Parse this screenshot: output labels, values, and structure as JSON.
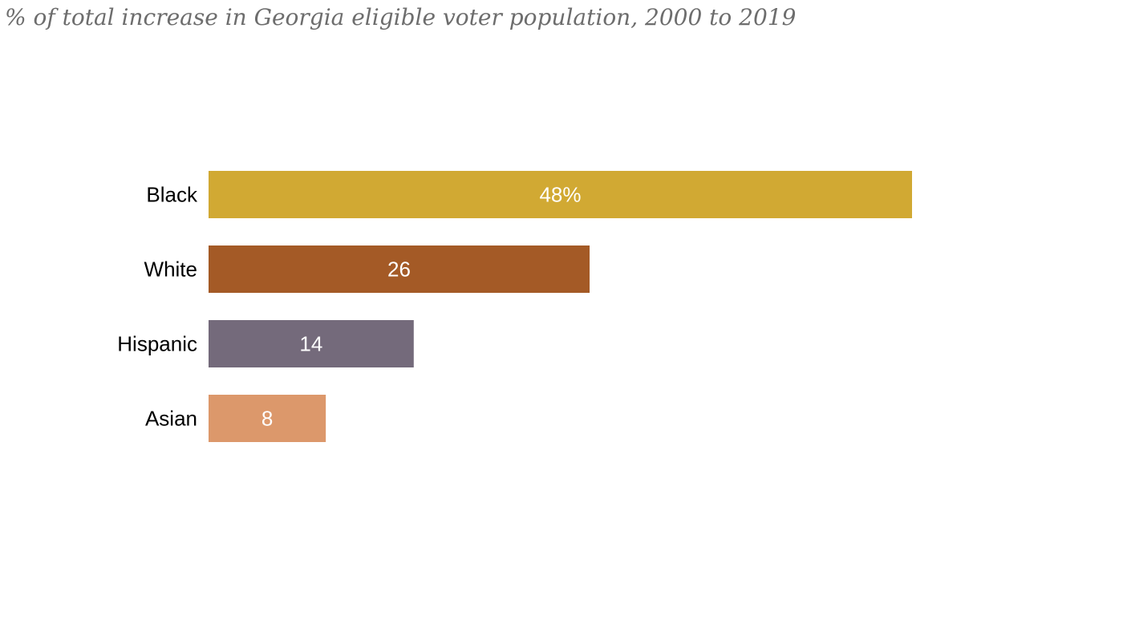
{
  "chart_data": {
    "type": "bar",
    "orientation": "horizontal",
    "title": "% of total increase in Georgia eligible voter population, 2000 to 2019",
    "categories": [
      "Black",
      "White",
      "Hispanic",
      "Asian"
    ],
    "values": [
      48,
      26,
      14,
      8
    ],
    "value_labels": [
      "48%",
      "26",
      "14",
      "8"
    ],
    "colors": [
      "#d1a933",
      "#a45a26",
      "#746a7b",
      "#dc986b"
    ],
    "xlim": [
      0,
      48
    ],
    "grid": false,
    "legend": "none"
  }
}
